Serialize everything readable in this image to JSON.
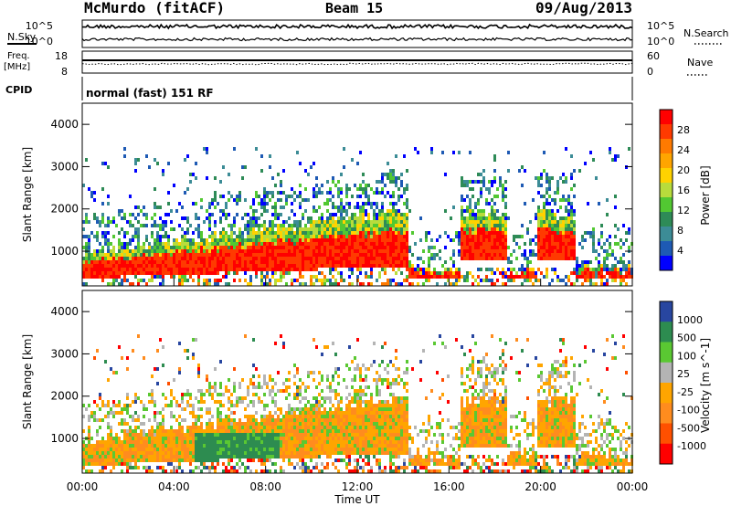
{
  "header": {
    "station": "McMurdo (fitACF)",
    "beam": "Beam 15",
    "date": "09/Aug/2013"
  },
  "summary_panels": {
    "nsky": {
      "label": "N.Sky",
      "ticks": [
        "10^5",
        "10^0"
      ]
    },
    "nsearch": {
      "label": "N.Search",
      "ticks": [
        "10^5",
        "10^0"
      ]
    },
    "freq": {
      "label_line1": "Freq.",
      "label_line2": "[MHz]",
      "ticks": [
        "18",
        "8"
      ]
    },
    "nave": {
      "label": "Nave",
      "ticks": [
        "60",
        "0"
      ]
    },
    "cpid": {
      "label": "CPID",
      "value": "normal (fast) 151 RF"
    }
  },
  "chart_data": [
    {
      "type": "heatmap",
      "title": "",
      "ylabel": "Slant Range [km]",
      "xlabel": "",
      "ylim": [
        180,
        4500
      ],
      "yticks": [
        "1000",
        "2000",
        "3000",
        "4000"
      ],
      "xticks": [
        "00:00",
        "04:00",
        "08:00",
        "12:00",
        "16:00",
        "20:00",
        "00:00"
      ],
      "colorbar": {
        "label": "Power [dB]",
        "ticks": [
          "28",
          "24",
          "20",
          "16",
          "12",
          "8",
          "4"
        ],
        "colors": [
          "#ff0000",
          "#ff3a00",
          "#ff7a00",
          "#ffa500",
          "#ffd200",
          "#b8dc3c",
          "#52c832",
          "#2e8b57",
          "#3c8c96",
          "#1e5ab4",
          "#0000ff"
        ]
      }
    },
    {
      "type": "heatmap",
      "title": "",
      "ylabel": "Slant Range [km]",
      "xlabel": "Time UT",
      "ylim": [
        180,
        4500
      ],
      "yticks": [
        "1000",
        "2000",
        "3000",
        "4000"
      ],
      "xticks": [
        "00:00",
        "04:00",
        "08:00",
        "12:00",
        "16:00",
        "20:00",
        "00:00"
      ],
      "colorbar": {
        "label": "Velocity [m s^-1]",
        "ticks": [
          "1000",
          "500",
          "100",
          "25",
          "-25",
          "-100",
          "-500",
          "-1000"
        ],
        "colors": [
          "#2846a0",
          "#2d8c50",
          "#5ac832",
          "#b4b4b4",
          "#ffa500",
          "#ff8c1e",
          "#ff5000",
          "#ff0000"
        ]
      }
    }
  ]
}
